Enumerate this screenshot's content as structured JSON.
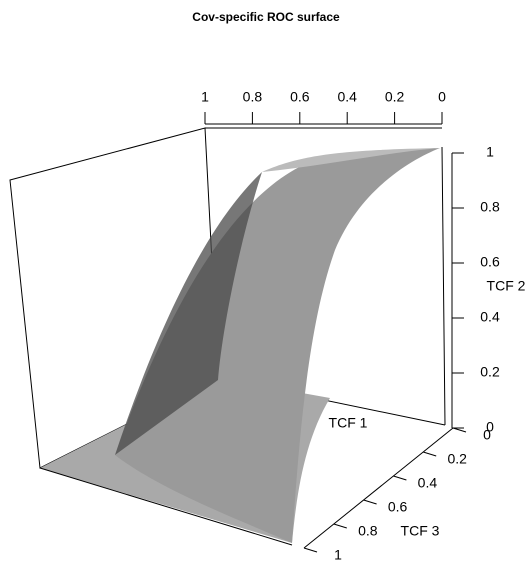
{
  "chart_data": {
    "type": "surface",
    "title": "Cov-specific ROC surface",
    "xlabel": "TCF 1",
    "ylabel": "TCF 2",
    "zlabel": "TCF 3",
    "xlim": [
      0,
      1
    ],
    "xticks": [
      1,
      0.8,
      0.6,
      0.4,
      0.2,
      0
    ],
    "ylim": [
      0,
      1
    ],
    "yticks": [
      0,
      0.2,
      0.4,
      0.6,
      0.8,
      1
    ],
    "zlim": [
      0,
      1
    ],
    "zticks": [
      0,
      0.2,
      0.4,
      0.6,
      0.8,
      1
    ],
    "color": "#9a9a9a"
  }
}
